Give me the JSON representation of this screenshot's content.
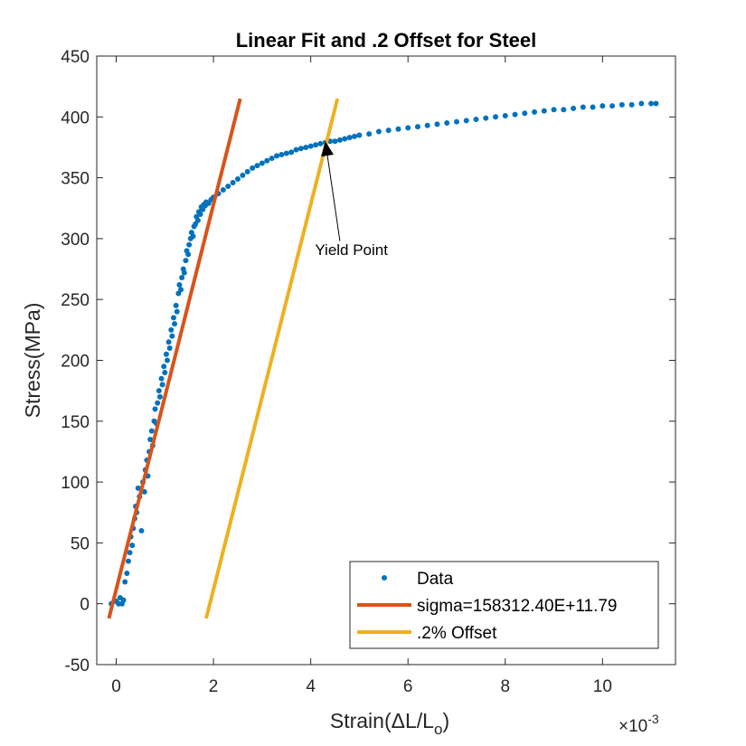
{
  "chart_data": {
    "type": "scatter",
    "title": "Linear Fit and .2 Offset for Steel",
    "xlabel": "Strain(ΔL/L",
    "xlabel_subscript": "o",
    "xlabel_suffix": ")",
    "ylabel": "Stress(MPa)",
    "x_exponent_base": "×10",
    "x_exponent_power": "-3",
    "xlim": [
      -0.4,
      11.5
    ],
    "ylim": [
      -50,
      450
    ],
    "xticks": [
      0,
      2,
      4,
      6,
      8,
      10
    ],
    "xtick_labels": [
      "0",
      "2",
      "4",
      "6",
      "8",
      "10"
    ],
    "yticks": [
      -50,
      0,
      50,
      100,
      150,
      200,
      250,
      300,
      350,
      400,
      450
    ],
    "ytick_labels": [
      "-50",
      "0",
      "50",
      "100",
      "150",
      "200",
      "250",
      "300",
      "350",
      "400",
      "450"
    ],
    "x_units_note": "strain values in units of 10^-3",
    "series": [
      {
        "name": "Data",
        "kind": "scatter",
        "color": "#0072BD",
        "points": [
          [
            -0.1,
            0
          ],
          [
            0.0,
            2
          ],
          [
            0.05,
            0
          ],
          [
            0.08,
            5
          ],
          [
            0.12,
            0
          ],
          [
            0.15,
            3
          ],
          [
            0.18,
            18
          ],
          [
            0.22,
            25
          ],
          [
            0.25,
            35
          ],
          [
            0.28,
            42
          ],
          [
            0.3,
            55
          ],
          [
            0.33,
            48
          ],
          [
            0.35,
            62
          ],
          [
            0.38,
            70
          ],
          [
            0.4,
            80
          ],
          [
            0.42,
            75
          ],
          [
            0.45,
            95
          ],
          [
            0.48,
            88
          ],
          [
            0.52,
            60
          ],
          [
            0.55,
            100
          ],
          [
            0.58,
            92
          ],
          [
            0.6,
            110
          ],
          [
            0.63,
            118
          ],
          [
            0.65,
            105
          ],
          [
            0.68,
            125
          ],
          [
            0.7,
            135
          ],
          [
            0.73,
            142
          ],
          [
            0.75,
            130
          ],
          [
            0.78,
            150
          ],
          [
            0.8,
            160
          ],
          [
            0.83,
            148
          ],
          [
            0.85,
            165
          ],
          [
            0.88,
            175
          ],
          [
            0.9,
            170
          ],
          [
            0.93,
            185
          ],
          [
            0.95,
            180
          ],
          [
            0.98,
            195
          ],
          [
            1.0,
            190
          ],
          [
            1.03,
            205
          ],
          [
            1.05,
            200
          ],
          [
            1.08,
            215
          ],
          [
            1.1,
            210
          ],
          [
            1.13,
            225
          ],
          [
            1.15,
            220
          ],
          [
            1.18,
            235
          ],
          [
            1.2,
            230
          ],
          [
            1.23,
            245
          ],
          [
            1.25,
            240
          ],
          [
            1.28,
            255
          ],
          [
            1.3,
            262
          ],
          [
            1.33,
            258
          ],
          [
            1.35,
            268
          ],
          [
            1.38,
            275
          ],
          [
            1.4,
            272
          ],
          [
            1.43,
            282
          ],
          [
            1.45,
            290
          ],
          [
            1.48,
            287
          ],
          [
            1.5,
            295
          ],
          [
            1.53,
            300
          ],
          [
            1.55,
            305
          ],
          [
            1.58,
            302
          ],
          [
            1.6,
            310
          ],
          [
            1.63,
            312
          ],
          [
            1.65,
            318
          ],
          [
            1.68,
            315
          ],
          [
            1.7,
            322
          ],
          [
            1.73,
            320
          ],
          [
            1.75,
            326
          ],
          [
            1.78,
            324
          ],
          [
            1.8,
            328
          ],
          [
            1.83,
            327
          ],
          [
            1.85,
            330
          ],
          [
            1.9,
            329
          ],
          [
            1.95,
            332
          ],
          [
            2.0,
            334
          ],
          [
            2.1,
            337
          ],
          [
            2.2,
            340
          ],
          [
            2.3,
            343
          ],
          [
            2.4,
            346
          ],
          [
            2.5,
            349
          ],
          [
            2.6,
            352
          ],
          [
            2.7,
            355
          ],
          [
            2.8,
            358
          ],
          [
            2.9,
            360
          ],
          [
            3.0,
            362
          ],
          [
            3.1,
            364
          ],
          [
            3.2,
            366
          ],
          [
            3.3,
            368
          ],
          [
            3.4,
            369
          ],
          [
            3.5,
            370
          ],
          [
            3.6,
            371
          ],
          [
            3.7,
            373
          ],
          [
            3.8,
            374
          ],
          [
            3.9,
            375
          ],
          [
            4.0,
            376
          ],
          [
            4.1,
            377
          ],
          [
            4.2,
            378
          ],
          [
            4.3,
            379
          ],
          [
            4.4,
            380
          ],
          [
            4.5,
            380
          ],
          [
            4.6,
            381
          ],
          [
            4.7,
            382
          ],
          [
            4.8,
            383
          ],
          [
            4.9,
            384
          ],
          [
            5.0,
            385
          ],
          [
            5.2,
            386
          ],
          [
            5.4,
            388
          ],
          [
            5.6,
            389
          ],
          [
            5.8,
            390
          ],
          [
            6.0,
            391
          ],
          [
            6.2,
            392
          ],
          [
            6.4,
            393
          ],
          [
            6.6,
            394
          ],
          [
            6.8,
            395
          ],
          [
            7.0,
            396
          ],
          [
            7.2,
            397
          ],
          [
            7.4,
            398
          ],
          [
            7.6,
            399
          ],
          [
            7.8,
            400
          ],
          [
            8.0,
            401
          ],
          [
            8.2,
            402
          ],
          [
            8.4,
            403
          ],
          [
            8.6,
            404
          ],
          [
            8.8,
            405
          ],
          [
            9.0,
            406
          ],
          [
            9.2,
            406
          ],
          [
            9.4,
            407
          ],
          [
            9.6,
            408
          ],
          [
            9.8,
            408
          ],
          [
            10.0,
            409
          ],
          [
            10.2,
            409
          ],
          [
            10.4,
            410
          ],
          [
            10.6,
            410
          ],
          [
            10.8,
            411
          ],
          [
            11.0,
            411
          ],
          [
            11.1,
            411
          ]
        ]
      },
      {
        "name": "sigma=158312.40E+11.79",
        "kind": "line",
        "color": "#D95319",
        "points": [
          [
            -0.15,
            -12
          ],
          [
            2.55,
            415
          ]
        ]
      },
      {
        "name": ".2% Offset",
        "kind": "line",
        "color": "#EDB120",
        "points": [
          [
            1.85,
            -12
          ],
          [
            4.55,
            415
          ]
        ]
      }
    ],
    "annotation": {
      "text": "Yield Point",
      "text_anchor_data": [
        4.8,
        285
      ],
      "arrow_tail_data": [
        4.6,
        298
      ],
      "arrow_head_data": [
        4.3,
        380
      ]
    },
    "legend": {
      "placement": "bottom-right",
      "entries": [
        "Data",
        "sigma=158312.40E+11.79",
        ".2% Offset"
      ]
    }
  }
}
